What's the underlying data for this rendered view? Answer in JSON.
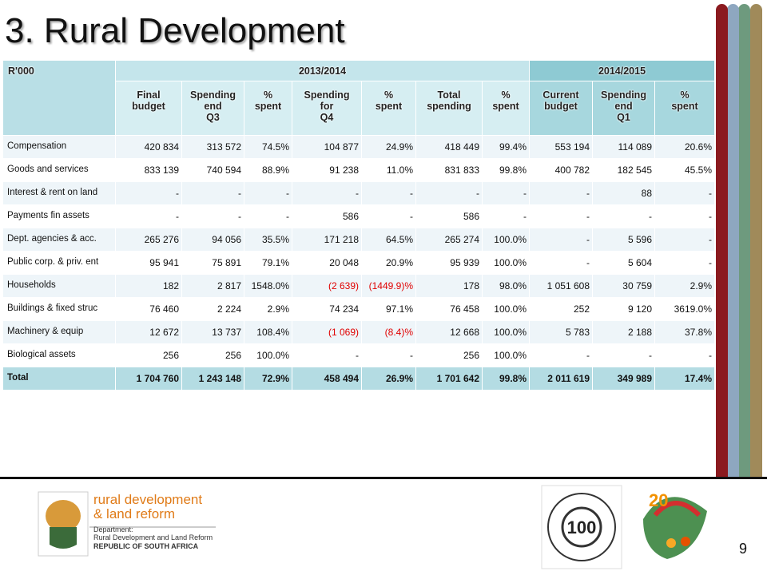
{
  "title": "3. Rural Development",
  "table": {
    "corner": "R'000",
    "groups": [
      "2013/2014",
      "2014/2015"
    ],
    "columns": [
      [
        "Final",
        "budget"
      ],
      [
        "Spending",
        "end",
        "Q3"
      ],
      [
        "%",
        "spent"
      ],
      [
        "Spending",
        "for",
        "Q4"
      ],
      [
        "%",
        "spent"
      ],
      [
        "Total",
        "spending"
      ],
      [
        "%",
        "spent"
      ],
      [
        "Current",
        "budget"
      ],
      [
        "Spending",
        "end",
        "Q1"
      ],
      [
        "%",
        "spent"
      ]
    ],
    "rows": [
      [
        "Compensation",
        "420 834",
        "313 572",
        "74.5%",
        "104 877",
        "24.9%",
        "418 449",
        "99.4%",
        "553 194",
        "114 089",
        "20.6%"
      ],
      [
        "Goods and services",
        "833 139",
        "740 594",
        "88.9%",
        "91 238",
        "11.0%",
        "831 833",
        "99.8%",
        "400 782",
        "182 545",
        "45.5%"
      ],
      [
        "Interest & rent on land",
        "-",
        "-",
        "-",
        "-",
        "-",
        "-",
        "-",
        "-",
        "88",
        "-"
      ],
      [
        "Payments fin assets",
        "-",
        "-",
        "-",
        "586",
        "-",
        "586",
        "-",
        "-",
        "-",
        "-"
      ],
      [
        "Dept. agencies & acc.",
        "265 276",
        "94 056",
        "35.5%",
        "171 218",
        "64.5%",
        "265 274",
        "100.0%",
        "-",
        "5 596",
        "-"
      ],
      [
        "Public corp. & priv. ent",
        "95 941",
        "75 891",
        "79.1%",
        "20 048",
        "20.9%",
        "95 939",
        "100.0%",
        "-",
        "5 604",
        "-"
      ],
      [
        "Households",
        "182",
        "2 817",
        "1548.0%",
        "(2 639)",
        "(1449.9)%",
        "178",
        "98.0%",
        "1 051 608",
        "30 759",
        "2.9%"
      ],
      [
        "Buildings & fixed struc",
        "76 460",
        "2 224",
        "2.9%",
        "74 234",
        "97.1%",
        "76 458",
        "100.0%",
        "252",
        "9 120",
        "3619.0%"
      ],
      [
        "Machinery & equip",
        "12 672",
        "13 737",
        "108.4%",
        "(1 069)",
        "(8.4)%",
        "12 668",
        "100.0%",
        "5 783",
        "2 188",
        "37.8%"
      ],
      [
        "Biological assets",
        "256",
        "256",
        "100.0%",
        "-",
        "-",
        "256",
        "100.0%",
        "-",
        "-",
        "-"
      ],
      [
        "Total",
        "1 704 760",
        "1 243 148",
        "72.9%",
        "458 494",
        "26.9%",
        "1 701 642",
        "99.8%",
        "2 011 619",
        "349 989",
        "17.4%"
      ]
    ]
  },
  "footer": {
    "brand": [
      "rural development",
      "& land reform"
    ],
    "department": "Department:",
    "department_name": "Rural Development and Land Reform",
    "country": "REPUBLIC OF SOUTH AFRICA",
    "centenary": "100",
    "freedom": "20",
    "page_number": "9"
  }
}
